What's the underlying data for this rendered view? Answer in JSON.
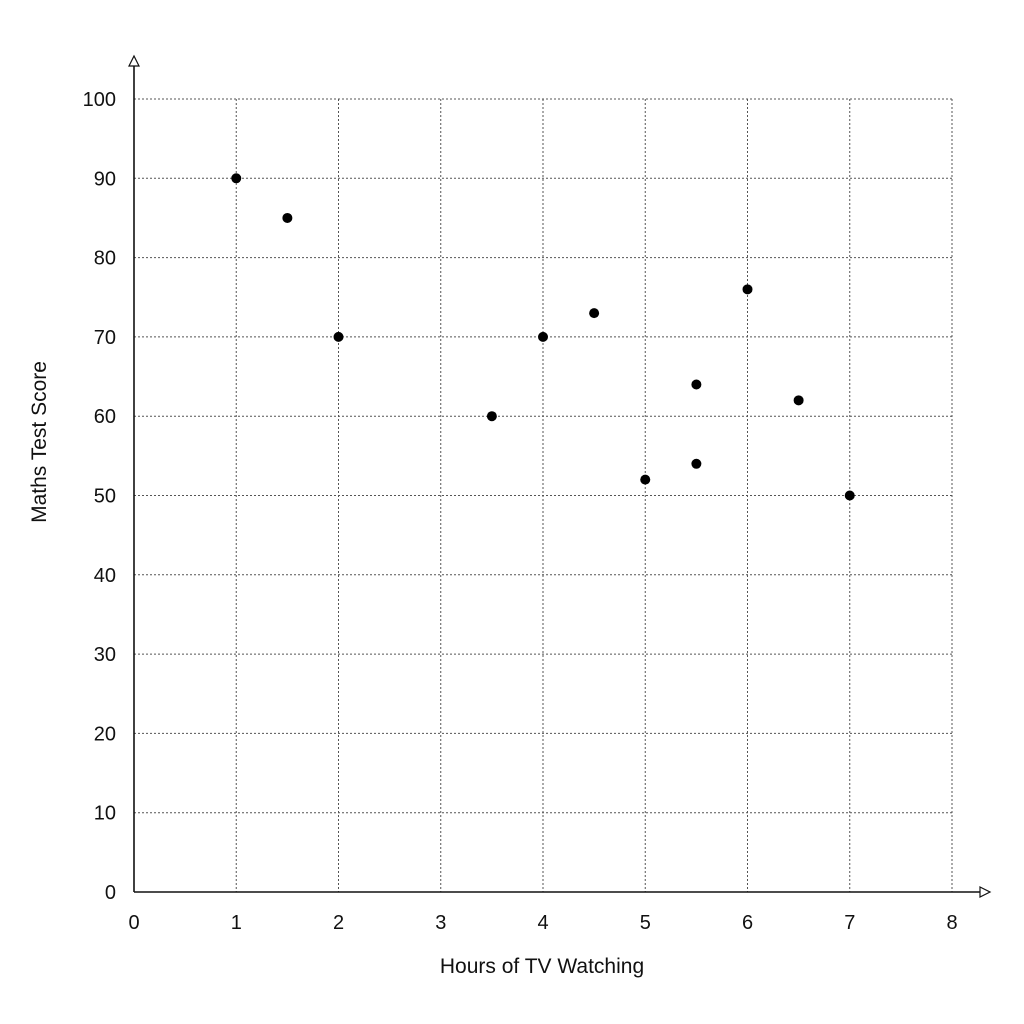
{
  "chart_data": {
    "type": "scatter",
    "title": "",
    "xlabel": "Hours of TV Watching",
    "ylabel": "Maths Test Score",
    "xlim": [
      0,
      8
    ],
    "ylim": [
      0,
      100
    ],
    "x_ticks": [
      "0",
      "1",
      "2",
      "3",
      "4",
      "5",
      "6",
      "7",
      "8"
    ],
    "y_ticks": [
      "0",
      "10",
      "20",
      "30",
      "40",
      "50",
      "60",
      "70",
      "80",
      "90",
      "100"
    ],
    "grid": true,
    "grid_style": "dotted",
    "points": [
      {
        "x": 1,
        "y": 90
      },
      {
        "x": 1.5,
        "y": 85
      },
      {
        "x": 2,
        "y": 70
      },
      {
        "x": 3.5,
        "y": 60
      },
      {
        "x": 4,
        "y": 70
      },
      {
        "x": 4.5,
        "y": 73
      },
      {
        "x": 5,
        "y": 52
      },
      {
        "x": 5.5,
        "y": 64
      },
      {
        "x": 5.5,
        "y": 54
      },
      {
        "x": 6,
        "y": 76
      },
      {
        "x": 6.5,
        "y": 62
      },
      {
        "x": 7,
        "y": 50
      }
    ],
    "colors": {
      "points": "#000000",
      "axes": "#111111",
      "grid": "#555555"
    }
  }
}
